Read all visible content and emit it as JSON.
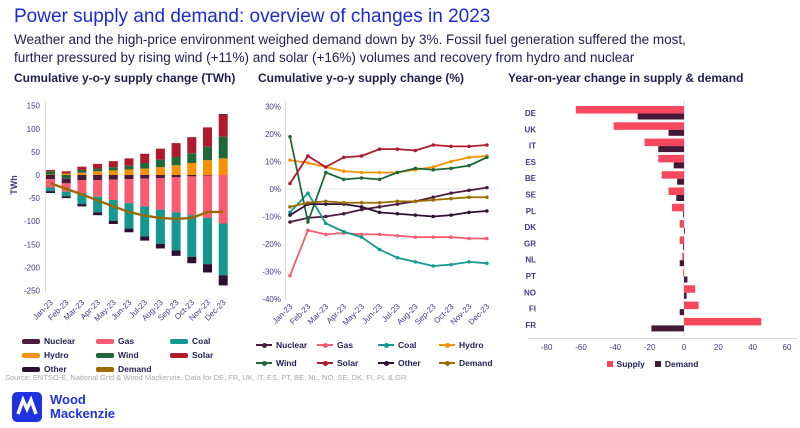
{
  "header": {
    "title": "Power supply and demand: overview of changes in 2023",
    "subtitle_line1": "Weather and the high-price environment weighed demand down by 3%. Fossil fuel generation suffered the most,",
    "subtitle_line2": "further pressured by rising wind (+11%) and solar (+16%) volumes and recovery from hydro and nuclear"
  },
  "panels": {
    "left_title": "Cumulative y-o-y supply change (TWh)",
    "mid_title": "Cumulative y-o-y supply change (%)",
    "right_title": "Year-on-year change in supply & demand"
  },
  "colors": {
    "nuclear": "#4C1A3E",
    "gas": "#F85C6E",
    "coal": "#149890",
    "hydro": "#F69200",
    "wind": "#20683A",
    "solar": "#AF1A2D",
    "other": "#2D1130",
    "demand_line": "#9C6B00",
    "supply_bar": "#F8485E",
    "demand_bar": "#451837",
    "title_blue": "#1b2ad5",
    "text_navy": "#1e1e52",
    "axis_text": "#3d3d85",
    "logo_blue": "#1e32e0"
  },
  "chart_data": [
    {
      "type": "bar",
      "stacked": true,
      "orientation": "vertical",
      "title": "Cumulative y-o-y supply change (TWh)",
      "ylabel": "TWh",
      "ylim": [
        -250,
        150
      ],
      "yticks": [
        150,
        100,
        50,
        0,
        -50,
        -100,
        -150,
        -200,
        -250
      ],
      "categories": [
        "Jan-23",
        "Feb-23",
        "Mar-23",
        "Apr-23",
        "May-23",
        "Jun-23",
        "Jul-23",
        "Aug-23",
        "Sep-23",
        "Oct-23",
        "Nov-23",
        "Dec-23"
      ],
      "series": [
        {
          "name": "Hydro",
          "color": "#F69200",
          "values": [
            1,
            3,
            5,
            8,
            10,
            12,
            14,
            17,
            21,
            26,
            32,
            36
          ]
        },
        {
          "name": "Wind",
          "color": "#20683A",
          "values": [
            7,
            -8,
            6,
            6,
            7,
            8,
            12,
            16,
            18,
            21,
            29,
            47
          ]
        },
        {
          "name": "Solar",
          "color": "#AF1A2D",
          "values": [
            3,
            5,
            7,
            10,
            13,
            16,
            20,
            24,
            30,
            35,
            42,
            47
          ]
        },
        {
          "name": "Nuclear",
          "color": "#4C1A3E",
          "values": [
            -9,
            -10,
            -11,
            -11,
            -10,
            -9,
            -8,
            -7,
            -5,
            -3,
            -1,
            2
          ]
        },
        {
          "name": "Gas",
          "color": "#F85C6E",
          "values": [
            -18,
            -18,
            -28,
            -36,
            -44,
            -52,
            -60,
            -68,
            -76,
            -84,
            -92,
            -105
          ]
        },
        {
          "name": "Coal",
          "color": "#149890",
          "values": [
            -8,
            -10,
            -24,
            -34,
            -45,
            -55,
            -65,
            -74,
            -82,
            -90,
            -100,
            -112
          ]
        },
        {
          "name": "Other",
          "color": "#2D1130",
          "values": [
            -4,
            -4,
            -5,
            -6,
            -7,
            -8,
            -9,
            -10,
            -12,
            -14,
            -18,
            -22
          ]
        }
      ],
      "line_series": {
        "name": "Demand",
        "color": "#9C6B00",
        "values": [
          -18,
          -30,
          -42,
          -55,
          -68,
          -80,
          -88,
          -93,
          -95,
          -93,
          -80,
          -80
        ]
      },
      "legend_order": [
        "Nuclear",
        "Gas",
        "Coal",
        "Hydro",
        "Wind",
        "Solar",
        "Other",
        "Demand"
      ]
    },
    {
      "type": "line",
      "title": "Cumulative y-o-y supply change (%)",
      "ylim": [
        -40,
        30
      ],
      "yticks": [
        30,
        20,
        10,
        0,
        -10,
        -20,
        -30,
        -40
      ],
      "ytick_suffix": "%",
      "categories": [
        "Jan-23",
        "Feb-23",
        "Mar-23",
        "Apr-23",
        "May-23",
        "Jun-23",
        "Jul-23",
        "Aug-23",
        "Sep-23",
        "Oct-23",
        "Nov-23",
        "Dec-23"
      ],
      "series": [
        {
          "name": "Nuclear",
          "color": "#4C1A3E",
          "values": [
            -12,
            -10.5,
            -10,
            -9,
            -7.5,
            -6.5,
            -5.5,
            -4.5,
            -3,
            -1.5,
            -0.5,
            0.5
          ]
        },
        {
          "name": "Gas",
          "color": "#F85C6E",
          "values": [
            -31.5,
            -15,
            -16.5,
            -16,
            -16.5,
            -16.5,
            -17,
            -17.5,
            -17.5,
            -17.5,
            -18,
            -18
          ]
        },
        {
          "name": "Coal",
          "color": "#149890",
          "values": [
            -8.5,
            -1.5,
            -12.5,
            -15.5,
            -17.5,
            -22,
            -25,
            -26.5,
            -28,
            -27.5,
            -26.5,
            -27
          ]
        },
        {
          "name": "Hydro",
          "color": "#F69200",
          "values": [
            10.5,
            9.5,
            8,
            6.5,
            6,
            6,
            6,
            7,
            8,
            10,
            11.5,
            12
          ]
        },
        {
          "name": "Wind",
          "color": "#20683A",
          "values": [
            19,
            -12,
            6,
            3.5,
            4,
            3.5,
            6,
            7.5,
            7,
            7.5,
            8.5,
            11.5
          ]
        },
        {
          "name": "Solar",
          "color": "#AF1A2D",
          "values": [
            2,
            12,
            8,
            11.5,
            12,
            14.5,
            14.5,
            14,
            16,
            15.5,
            15.5,
            16
          ]
        },
        {
          "name": "Other",
          "color": "#2D1130",
          "values": [
            -9.5,
            -5.5,
            -5.5,
            -5.5,
            -6.5,
            -8.5,
            -9,
            -9.5,
            -10,
            -9.5,
            -8.5,
            -8
          ]
        },
        {
          "name": "Demand",
          "color": "#9C6B00",
          "values": [
            -6.5,
            -5,
            -4.5,
            -5,
            -5,
            -5,
            -4.5,
            -4.5,
            -4,
            -3.5,
            -3,
            -3
          ]
        }
      ],
      "legend_order": [
        "Nuclear",
        "Gas",
        "Coal",
        "Hydro",
        "Wind",
        "Solar",
        "Other",
        "Demand"
      ]
    },
    {
      "type": "bar",
      "orientation": "horizontal",
      "title": "Year-on-year change in supply & demand",
      "xlim": [
        -80,
        60
      ],
      "xticks": [
        -80,
        -60,
        -40,
        -20,
        0,
        20,
        40,
        60
      ],
      "categories": [
        "DE",
        "UK",
        "IT",
        "ES",
        "BE",
        "SE",
        "PL",
        "DK",
        "GR",
        "NL",
        "PT",
        "NO",
        "FI",
        "FR"
      ],
      "series": [
        {
          "name": "Supply",
          "color": "#F8485E",
          "values": [
            -63,
            -41,
            -23,
            -15,
            -13,
            -9,
            -7,
            -2.5,
            -2.5,
            -1,
            -0.5,
            6.5,
            8.5,
            45
          ]
        },
        {
          "name": "Demand",
          "color": "#451837",
          "values": [
            -27,
            -9,
            -15,
            -6,
            -4,
            -4.5,
            -0.5,
            0.5,
            -0.5,
            -2.5,
            2,
            1.5,
            -2.5,
            -19
          ]
        }
      ],
      "legend_order": [
        "Supply",
        "Demand"
      ]
    }
  ],
  "source": "Source: ENTSO-E, National Grid & Wood Mackenzie. Data for DE, FR, UK, IT, ES, PT, BE, NL, NO, SE, DK, FI, PL & GR",
  "logo": {
    "line1": "Wood",
    "line2": "Mackenzie"
  }
}
